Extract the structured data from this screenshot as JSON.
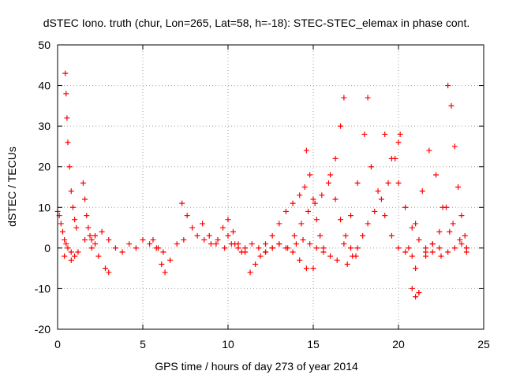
{
  "chart_data": {
    "type": "scatter",
    "title": "dSTEC Iono. truth (chur, Lon=265, Lat=58, h=-18): STEC-STEC_elemax in phase cont.",
    "xlabel": "GPS time / hours of day 273 of year 2014",
    "ylabel": "dSTEC  / TECUs",
    "xlim": [
      0,
      25
    ],
    "ylim": [
      -20,
      50
    ],
    "xticks": [
      0,
      5,
      10,
      15,
      20,
      25
    ],
    "yticks": [
      -20,
      -10,
      0,
      10,
      20,
      30,
      40,
      50
    ],
    "grid": true,
    "marker": "+",
    "color": "#ff0000",
    "series": [
      {
        "x": [
          0.0,
          0.1,
          0.2,
          0.3,
          0.4,
          0.5,
          0.6,
          0.8,
          1.0
        ],
        "y": [
          9,
          8,
          6,
          4,
          2,
          1,
          0,
          -1,
          -2
        ]
      },
      {
        "x": [
          0.45,
          0.5,
          0.55,
          0.6,
          0.7,
          0.8,
          0.9,
          1.0,
          1.1
        ],
        "y": [
          43,
          38,
          32,
          26,
          20,
          14,
          10,
          7,
          5
        ]
      },
      {
        "x": [
          0.4,
          0.8,
          1.2,
          1.6,
          2.0,
          2.4,
          2.8,
          3.0
        ],
        "y": [
          -2,
          -3,
          -1,
          2,
          0,
          -2,
          -5,
          -6
        ]
      },
      {
        "x": [
          1.5,
          1.6,
          1.7,
          1.8,
          1.9,
          2.0,
          2.2
        ],
        "y": [
          16,
          12,
          8,
          5,
          3,
          2,
          1
        ]
      },
      {
        "x": [
          2.2,
          2.6,
          3.0,
          3.4,
          3.8,
          4.2,
          4.6,
          5.0,
          5.4,
          5.8,
          6.2
        ],
        "y": [
          3,
          4,
          2,
          0,
          -1,
          1,
          0,
          2,
          1,
          0,
          -1
        ]
      },
      {
        "x": [
          5.6,
          5.9,
          6.1,
          6.3,
          6.6,
          7.0,
          7.4
        ],
        "y": [
          2,
          0,
          -4,
          -6,
          -3,
          1,
          2
        ]
      },
      {
        "x": [
          7.3,
          7.6,
          7.9,
          8.2,
          8.6,
          9.0,
          9.4,
          9.8,
          10.2,
          10.6,
          11.0
        ],
        "y": [
          11,
          8,
          5,
          3,
          2,
          1,
          2,
          0,
          1,
          0,
          -1
        ]
      },
      {
        "x": [
          8.5,
          8.9,
          9.3,
          9.7,
          10.0,
          10.4,
          10.8
        ],
        "y": [
          6,
          3,
          1,
          5,
          3,
          1,
          -1
        ]
      },
      {
        "x": [
          10.0,
          10.3,
          10.6,
          11.0,
          11.4,
          11.8,
          12.2,
          12.6,
          13.0
        ],
        "y": [
          7,
          4,
          1,
          0,
          1,
          0,
          -1,
          0,
          1
        ]
      },
      {
        "x": [
          11.3,
          11.6,
          11.9,
          12.2,
          12.6,
          13.0,
          13.4,
          13.8,
          14.2,
          14.6,
          15.0
        ],
        "y": [
          -6,
          -4,
          -2,
          -1,
          0,
          1,
          0,
          -1,
          -3,
          -5,
          -5
        ]
      },
      {
        "x": [
          12.2,
          12.6,
          13.0,
          13.4,
          13.8,
          14.2,
          14.5
        ],
        "y": [
          1,
          3,
          6,
          9,
          11,
          13,
          15
        ]
      },
      {
        "x": [
          13.5,
          13.9,
          14.3,
          14.7,
          15.1,
          15.5,
          15.9,
          16.3,
          16.6,
          16.8
        ],
        "y": [
          0,
          3,
          6,
          9,
          11,
          13,
          16,
          22,
          30,
          37
        ]
      },
      {
        "x": [
          14.0,
          14.4,
          14.8,
          15.2,
          15.6,
          16.0,
          16.4,
          16.8,
          17.2,
          17.6,
          18.0,
          18.2
        ],
        "y": [
          1,
          2,
          1,
          0,
          -1,
          -2,
          -3,
          1,
          8,
          16,
          28,
          37
        ]
      },
      {
        "x": [
          14.6,
          14.8,
          15.0,
          15.2,
          15.4,
          15.6
        ],
        "y": [
          24,
          18,
          12,
          7,
          3,
          0
        ]
      },
      {
        "x": [
          16.0,
          16.3,
          16.6,
          16.9,
          17.2,
          17.5
        ],
        "y": [
          18,
          12,
          7,
          3,
          0,
          -2
        ]
      },
      {
        "x": [
          17.0,
          17.3,
          17.6,
          17.9,
          18.2,
          18.6,
          19.0,
          19.4,
          19.8,
          20.0,
          20.1
        ],
        "y": [
          -4,
          -2,
          0,
          3,
          6,
          9,
          12,
          16,
          22,
          26,
          28
        ]
      },
      {
        "x": [
          18.4,
          18.8,
          19.2,
          19.6,
          20.0,
          20.4,
          20.8,
          21.0,
          21.2,
          21.6,
          22.0
        ],
        "y": [
          20,
          14,
          8,
          3,
          0,
          -1,
          -2,
          -5,
          -11,
          -2,
          1
        ]
      },
      {
        "x": [
          19.2,
          19.6,
          20.0,
          20.4,
          20.8,
          21.2,
          21.6,
          22.0,
          22.4
        ],
        "y": [
          28,
          22,
          16,
          10,
          5,
          2,
          0,
          -1,
          0
        ]
      },
      {
        "x": [
          20.6,
          21.0,
          21.4,
          21.8,
          22.2,
          22.6,
          23.0
        ],
        "y": [
          0,
          6,
          14,
          24,
          18,
          10,
          4
        ]
      },
      {
        "x": [
          20.8,
          21.0,
          21.2
        ],
        "y": [
          -10,
          -12,
          -11
        ]
      },
      {
        "x": [
          21.6,
          22.0,
          22.4,
          22.8,
          23.2,
          23.6,
          24.0
        ],
        "y": [
          -1,
          1,
          4,
          10,
          6,
          2,
          0
        ]
      },
      {
        "x": [
          22.9,
          23.1,
          23.3,
          23.5,
          23.7,
          23.9,
          24.0
        ],
        "y": [
          40,
          35,
          25,
          15,
          8,
          3,
          0
        ]
      },
      {
        "x": [
          22.5,
          22.9,
          23.3,
          23.7,
          24.0
        ],
        "y": [
          -2,
          -1,
          0,
          1,
          -1
        ]
      }
    ]
  }
}
